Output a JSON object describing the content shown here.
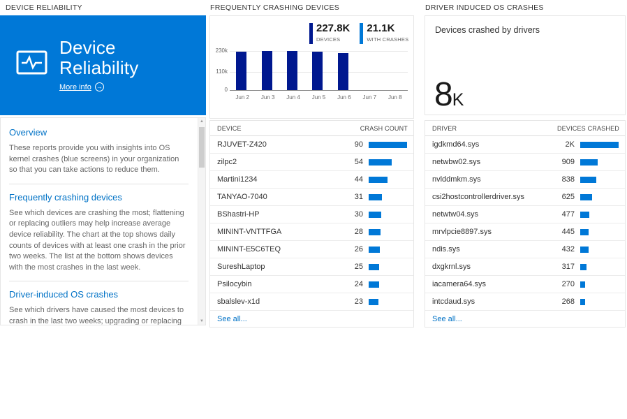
{
  "colors": {
    "tile_bg": "#0078d7",
    "accent_blue": "#0072c6",
    "bar_blue": "#0078d7",
    "bar_navy": "#00188f"
  },
  "reliability": {
    "header": "DEVICE RELIABILITY",
    "tile": {
      "title": "Device Reliability",
      "more_info_label": "More info"
    },
    "sections": [
      {
        "heading": "Overview",
        "body": "These reports provide you with insights into OS kernel crashes (blue screens) in your organization so that you can take actions to reduce them."
      },
      {
        "heading": "Frequently crashing devices",
        "body": "See which devices are crashing the most; flattening or replacing outliers may help increase average device reliability. The chart at the top shows daily counts of devices with at least one crash in the prior two weeks. The list at the bottom shows devices with the most crashes in the last week."
      },
      {
        "heading": "Driver-induced OS crashes",
        "body": "See which drivers have caused the most devices to crash in the last two weeks; upgrading or replacing these drivers"
      }
    ]
  },
  "devices": {
    "header": "FREQUENTLY CRASHING DEVICES",
    "table": {
      "device_col": "DEVICE",
      "count_col": "CRASH COUNT",
      "see_all": "See all...",
      "rows": [
        {
          "device": "RJUVET-Z420",
          "count": 90
        },
        {
          "device": "zilpc2",
          "count": 54
        },
        {
          "device": "Martini1234",
          "count": 44
        },
        {
          "device": "TANYAO-7040",
          "count": 31
        },
        {
          "device": "BShastri-HP",
          "count": 30
        },
        {
          "device": "MININT-VNTTFGA",
          "count": 28
        },
        {
          "device": "MININT-E5C6TEQ",
          "count": 26
        },
        {
          "device": "SureshLaptop",
          "count": 25
        },
        {
          "device": "Psilocybin",
          "count": 24
        },
        {
          "device": "sbalslev-x1d",
          "count": 23
        }
      ]
    }
  },
  "drivers": {
    "header": "DRIVER INDUCED OS CRASHES",
    "card": {
      "label": "Devices crashed by drivers",
      "value": "8",
      "unit": "K"
    },
    "table": {
      "driver_col": "DRIVER",
      "count_col": "DEVICES CRASHED",
      "see_all": "See all...",
      "rows": [
        {
          "driver": "igdkmd64.sys",
          "display": "2K",
          "value": 2000
        },
        {
          "driver": "netwbw02.sys",
          "display": "909",
          "value": 909
        },
        {
          "driver": "nvlddmkm.sys",
          "display": "838",
          "value": 838
        },
        {
          "driver": "csi2hostcontrollerdriver.sys",
          "display": "625",
          "value": 625
        },
        {
          "driver": "netwtw04.sys",
          "display": "477",
          "value": 477
        },
        {
          "driver": "mrvlpcie8897.sys",
          "display": "445",
          "value": 445
        },
        {
          "driver": "ndis.sys",
          "display": "432",
          "value": 432
        },
        {
          "driver": "dxgkrnl.sys",
          "display": "317",
          "value": 317
        },
        {
          "driver": "iacamera64.sys",
          "display": "270",
          "value": 270
        },
        {
          "driver": "intcdaud.sys",
          "display": "268",
          "value": 268
        }
      ]
    }
  },
  "chart_data": {
    "type": "bar",
    "categories": [
      "Jun 2",
      "Jun 3",
      "Jun 4",
      "Jun 5",
      "Jun 6",
      "Jun 7",
      "Jun 8"
    ],
    "yticks": [
      "230k",
      "110k",
      "0"
    ],
    "ylim": [
      0,
      230000
    ],
    "grid": true,
    "legend_position": "top-right",
    "series": [
      {
        "name": "DEVICES",
        "total_label": "227.8K",
        "color": "#00188f",
        "values": [
          226000,
          229000,
          230000,
          226000,
          217000,
          0,
          0
        ]
      },
      {
        "name": "WITH CRASHES",
        "total_label": "21.1K",
        "color": "#0078d7",
        "values": [
          5000,
          5200,
          5000,
          4600,
          4200,
          0,
          0
        ]
      }
    ]
  }
}
